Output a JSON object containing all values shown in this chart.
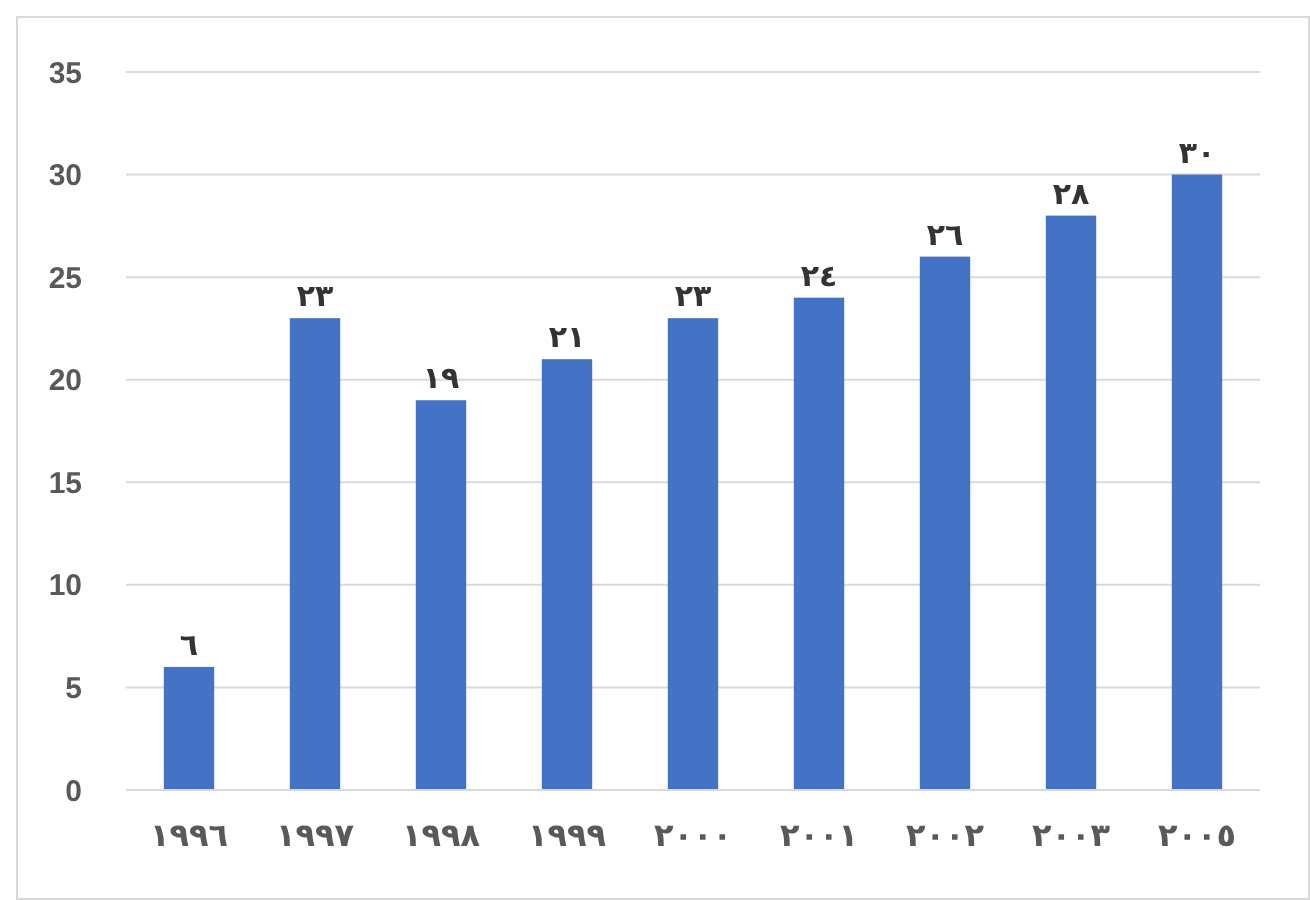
{
  "chart_data": {
    "type": "bar",
    "categories": [
      "١٩٩٦",
      "١٩٩٧",
      "١٩٩٨",
      "١٩٩٩",
      "٢٠٠٠",
      "٢٠٠١",
      "٢٠٠٢",
      "٢٠٠٣",
      "٢٠٠٥"
    ],
    "values": [
      6,
      23,
      19,
      21,
      23,
      24,
      26,
      28,
      30
    ],
    "value_labels": [
      "٦",
      "٢٣",
      "١٩",
      "٢١",
      "٢٣",
      "٢٤",
      "٢٦",
      "٢٨",
      "٣٠"
    ],
    "color": "#4472c4",
    "ylim": [
      0,
      35
    ],
    "yticks": [
      0,
      5,
      10,
      15,
      20,
      25,
      30,
      35
    ],
    "grid": "y"
  }
}
